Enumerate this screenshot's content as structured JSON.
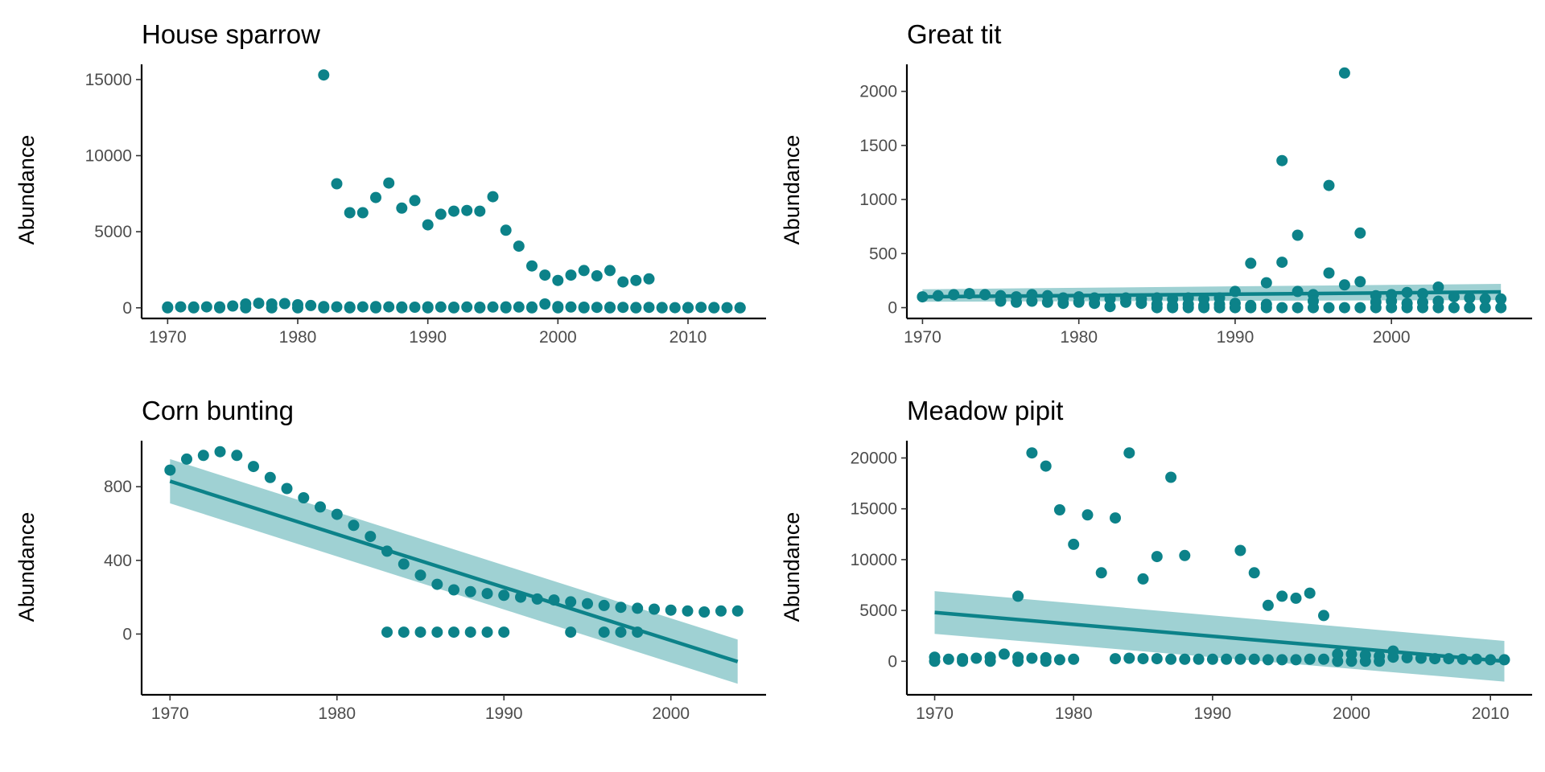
{
  "colors": {
    "point": "#0c8289",
    "line": "#0c8289",
    "band": "#8ec9cb"
  },
  "chart_data": [
    {
      "type": "scatter",
      "title": "House sparrow",
      "ylabel": "Abundance",
      "xlim": [
        1968,
        2016
      ],
      "ylim": [
        -700,
        16000
      ],
      "xticks": [
        1970,
        1980,
        1990,
        2000,
        2010
      ],
      "yticks": [
        0,
        5000,
        10000,
        15000
      ],
      "trend": null,
      "series": [
        {
          "x": [
            1982,
            1983,
            1984,
            1985,
            1986,
            1987,
            1988,
            1989,
            1990,
            1991,
            1992,
            1993,
            1994,
            1995,
            1996,
            1997,
            1998,
            1999,
            2000,
            2001,
            2002,
            2003,
            2004,
            2005,
            2006,
            2007
          ],
          "y": [
            15300,
            8150,
            6250,
            6250,
            7250,
            8200,
            6550,
            7050,
            5450,
            6150,
            6350,
            6400,
            6350,
            7300,
            5100,
            4050,
            2750,
            2150,
            1800,
            2150,
            2450,
            2100,
            2450,
            1700,
            1800,
            1900
          ]
        },
        {
          "x": [
            1970,
            1971,
            1972,
            1973,
            1974,
            1975,
            1976,
            1977,
            1978,
            1979,
            1980,
            1981,
            1982,
            1983,
            1984,
            1985,
            1986,
            1987,
            1988,
            1989,
            1990,
            1991,
            1992,
            1993,
            1994,
            1995,
            1996,
            1997,
            1998,
            1999,
            2000,
            2001,
            2002,
            2003,
            2004,
            2005,
            2006,
            2007,
            2008,
            2009,
            2010,
            2011,
            2012,
            2013,
            2014
          ],
          "y": [
            50,
            60,
            50,
            60,
            60,
            120,
            250,
            300,
            250,
            280,
            200,
            150,
            80,
            60,
            50,
            60,
            80,
            60,
            50,
            40,
            60,
            50,
            40,
            50,
            40,
            50,
            60,
            50,
            50,
            250,
            80,
            50,
            40,
            30,
            40,
            30,
            20,
            30,
            20,
            10,
            20,
            30,
            20,
            10,
            10
          ]
        },
        {
          "x": [
            1970,
            1972,
            1974,
            1976,
            1978,
            1980,
            1982,
            1984,
            1986,
            1988,
            1990,
            1992,
            1994,
            1996,
            1998,
            2000,
            2002,
            2004,
            2006,
            2008,
            2010,
            2012,
            2014
          ],
          "y": [
            0,
            0,
            0,
            0,
            0,
            0,
            0,
            0,
            0,
            0,
            0,
            0,
            0,
            0,
            0,
            0,
            0,
            0,
            0,
            0,
            0,
            0,
            0
          ]
        }
      ]
    },
    {
      "type": "scatter",
      "title": "Great tit",
      "ylabel": "Abundance",
      "xlim": [
        1969,
        2009
      ],
      "ylim": [
        -100,
        2250
      ],
      "xticks": [
        1970,
        1980,
        1990,
        2000
      ],
      "yticks": [
        0,
        500,
        1000,
        1500,
        2000
      ],
      "trend": {
        "x": [
          1970,
          2007
        ],
        "y": [
          100,
          145
        ],
        "lower": [
          55,
          70
        ],
        "upper": [
          170,
          220
        ]
      },
      "series": [
        {
          "x": [
            1970,
            1971,
            1972,
            1973,
            1974,
            1975,
            1976,
            1977,
            1978,
            1979,
            1980,
            1981,
            1982,
            1983,
            1984,
            1985,
            1986,
            1987,
            1988,
            1989,
            1990,
            1991,
            1992,
            1993,
            1994,
            1995,
            1996,
            1997,
            1998,
            1999,
            2000,
            2001,
            2002,
            2003,
            2004,
            2005,
            2006,
            2007
          ],
          "y": [
            100,
            110,
            120,
            130,
            120,
            110,
            100,
            120,
            110,
            90,
            100,
            90,
            80,
            90,
            80,
            90,
            80,
            90,
            80,
            90,
            150,
            410,
            230,
            1360,
            670,
            120,
            1130,
            2170,
            690,
            110,
            120,
            140,
            130,
            190,
            100,
            90,
            80,
            80
          ]
        },
        {
          "x": [
            1975,
            1976,
            1977,
            1978,
            1979,
            1980,
            1981,
            1982,
            1983,
            1984,
            1985,
            1986,
            1987,
            1988,
            1989,
            1990,
            1991,
            1992,
            1993,
            1994,
            1995,
            1996,
            1997,
            1998,
            1999,
            2000,
            2001,
            2002,
            2003
          ],
          "y": [
            60,
            50,
            60,
            50,
            40,
            50,
            40,
            10,
            50,
            40,
            30,
            20,
            30,
            20,
            30,
            40,
            20,
            30,
            420,
            150,
            60,
            320,
            210,
            240,
            50,
            60,
            40,
            50,
            60
          ]
        },
        {
          "x": [
            1985,
            1986,
            1987,
            1988,
            1989,
            1990,
            1991,
            1992,
            1993,
            1994,
            1995,
            1996,
            1997,
            1998,
            1999,
            2000,
            2001,
            2002,
            2003,
            2004,
            2005,
            2006,
            2007
          ],
          "y": [
            0,
            0,
            0,
            0,
            0,
            0,
            0,
            0,
            0,
            0,
            0,
            0,
            0,
            0,
            0,
            0,
            0,
            0,
            0,
            0,
            0,
            0,
            0
          ]
        }
      ]
    },
    {
      "type": "scatter",
      "title": "Corn bunting",
      "ylabel": "Abundance",
      "xlim": [
        1968.3,
        2005.7
      ],
      "ylim": [
        -330,
        1050
      ],
      "xticks": [
        1970,
        1980,
        1990,
        2000
      ],
      "yticks": [
        0,
        400,
        800
      ],
      "trend": {
        "x": [
          1970,
          2004
        ],
        "y": [
          830,
          -150
        ],
        "lower": [
          710,
          -270
        ],
        "upper": [
          950,
          -30
        ]
      },
      "series": [
        {
          "x": [
            1970,
            1971,
            1972,
            1973,
            1974,
            1975,
            1976,
            1977,
            1978,
            1979,
            1980,
            1981,
            1982,
            1983,
            1984,
            1985,
            1986,
            1987,
            1988,
            1989,
            1990,
            1991,
            1992,
            1993,
            1994,
            1995,
            1996,
            1997,
            1998,
            1999,
            2000,
            2001,
            2002,
            2003,
            2004
          ],
          "y": [
            890,
            950,
            970,
            990,
            970,
            910,
            850,
            790,
            740,
            690,
            650,
            590,
            530,
            450,
            380,
            320,
            270,
            240,
            230,
            220,
            210,
            200,
            190,
            185,
            175,
            165,
            155,
            145,
            140,
            135,
            130,
            125,
            120,
            125,
            125
          ]
        },
        {
          "x": [
            1983,
            1984,
            1985,
            1986,
            1987,
            1988,
            1989,
            1990,
            1994,
            1996,
            1997,
            1998
          ],
          "y": [
            10,
            10,
            10,
            10,
            10,
            10,
            10,
            10,
            10,
            10,
            10,
            10
          ]
        }
      ]
    },
    {
      "type": "scatter",
      "title": "Meadow pipit",
      "ylabel": "Abundance",
      "xlim": [
        1968,
        2013
      ],
      "ylim": [
        -3300,
        21700
      ],
      "xticks": [
        1970,
        1980,
        1990,
        2000,
        2010
      ],
      "yticks": [
        0,
        5000,
        10000,
        15000,
        20000
      ],
      "trend": {
        "x": [
          1970,
          2011
        ],
        "y": [
          4800,
          0
        ],
        "lower": [
          2700,
          -2000
        ],
        "upper": [
          6900,
          2000
        ]
      },
      "series": [
        {
          "x": [
            1976,
            1977,
            1978,
            1979,
            1980,
            1981,
            1982,
            1983,
            1984,
            1985,
            1986,
            1987,
            1988,
            1992,
            1993,
            1994,
            1995,
            1996,
            1997,
            1998,
            2003
          ],
          "y": [
            6400,
            20500,
            19200,
            14900,
            11500,
            14400,
            8700,
            14100,
            20500,
            8100,
            10300,
            18100,
            10400,
            10900,
            8700,
            5500,
            6400,
            6200,
            6700,
            4500,
            1000
          ]
        },
        {
          "x": [
            1970,
            1971,
            1972,
            1973,
            1974,
            1975,
            1976,
            1977,
            1978,
            1979,
            1980,
            1983,
            1984,
            1985,
            1986,
            1987,
            1988,
            1989,
            1990,
            1991,
            1992,
            1993,
            1994,
            1995,
            1996,
            1997,
            1998,
            1999,
            2000,
            2001,
            2002,
            2003,
            2004,
            2005,
            2006,
            2007,
            2008,
            2009,
            2010,
            2011
          ],
          "y": [
            400,
            200,
            250,
            300,
            400,
            700,
            400,
            300,
            350,
            150,
            200,
            250,
            300,
            250,
            250,
            200,
            200,
            200,
            200,
            200,
            200,
            200,
            150,
            150,
            150,
            200,
            200,
            700,
            700,
            600,
            500,
            400,
            350,
            300,
            250,
            250,
            200,
            200,
            150,
            150
          ]
        },
        {
          "x": [
            1970,
            1972,
            1974,
            1976,
            1978,
            1999,
            2000,
            2001,
            2002
          ],
          "y": [
            0,
            0,
            0,
            0,
            0,
            0,
            0,
            0,
            0
          ]
        }
      ]
    }
  ]
}
